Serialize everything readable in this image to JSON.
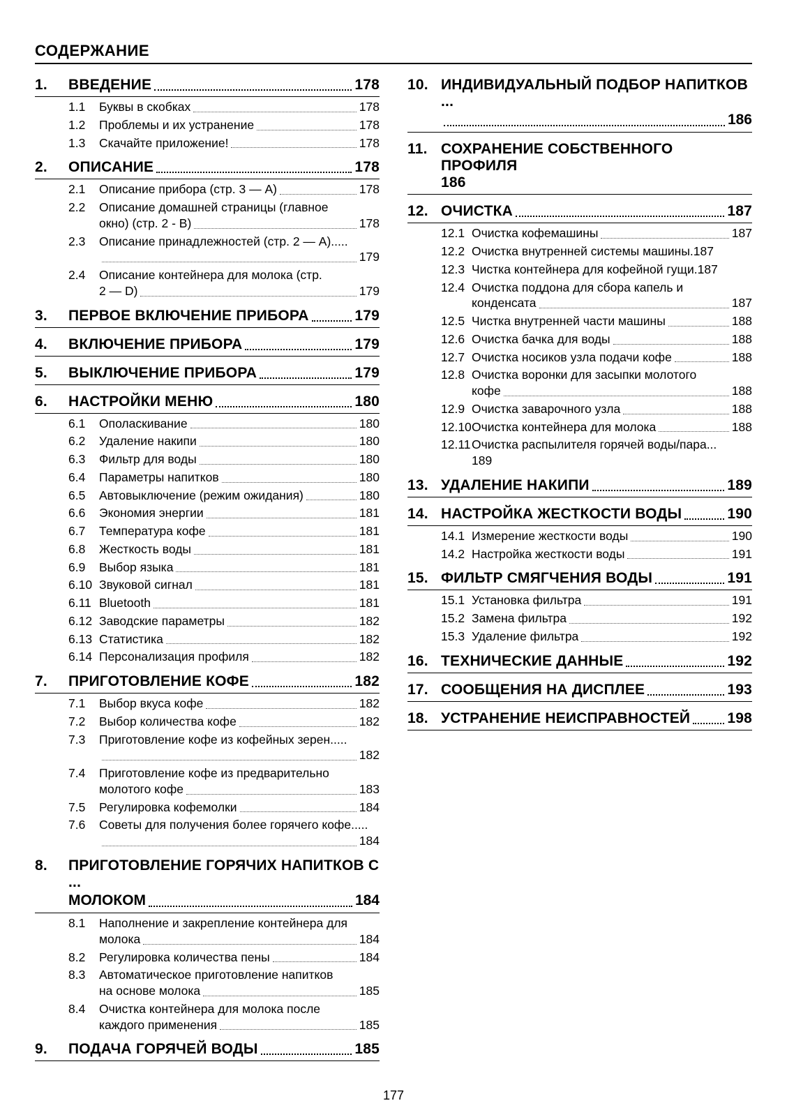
{
  "page_title": "СОДЕРЖАНИЕ",
  "page_number": "177",
  "sections": [
    {
      "num": "1.",
      "title": "ВВЕДЕНИЕ",
      "page": "178",
      "items": [
        {
          "num": "1.1",
          "title": "Буквы в скобках",
          "page": "178"
        },
        {
          "num": "1.2",
          "title": "Проблемы и их устранение",
          "page": "178"
        },
        {
          "num": "1.3",
          "title": "Скачайте приложение!",
          "page": "178"
        }
      ]
    },
    {
      "num": "2.",
      "title": "ОПИСАНИЕ",
      "page": "178",
      "items": [
        {
          "num": "2.1",
          "title": "Описание прибора (стр. 3 — A)",
          "page": "178"
        },
        {
          "num": "2.2",
          "title": "Описание домашней страницы (главное",
          "cont": "окно) (стр. 2 - B)",
          "page": "178"
        },
        {
          "num": "2.3",
          "title": "Описание принадлежностей (стр. 2 — A)",
          "cont": "",
          "page": "179"
        },
        {
          "num": "2.4",
          "title": "Описание контейнера для молока (стр.",
          "cont": "2 — D)",
          "page": "179"
        }
      ]
    },
    {
      "num": "3.",
      "title": "ПЕРВОЕ ВКЛЮЧЕНИЕ ПРИБОРА",
      "page": "179",
      "items": []
    },
    {
      "num": "4.",
      "title": "ВКЛЮЧЕНИЕ ПРИБОРА",
      "page": "179",
      "items": []
    },
    {
      "num": "5.",
      "title": "ВЫКЛЮЧЕНИЕ ПРИБОРА",
      "page": "179",
      "items": []
    },
    {
      "num": "6.",
      "title": "НАСТРОЙКИ МЕНЮ",
      "page": "180",
      "items": [
        {
          "num": "6.1",
          "title": "Ополаскивание",
          "page": "180"
        },
        {
          "num": "6.2",
          "title": "Удаление накипи",
          "page": "180"
        },
        {
          "num": "6.3",
          "title": "Фильтр для воды",
          "page": "180"
        },
        {
          "num": "6.4",
          "title": "Параметры напитков",
          "page": "180"
        },
        {
          "num": "6.5",
          "title": "Автовыключение (режим ожидания)",
          "page": "180"
        },
        {
          "num": "6.6",
          "title": "Экономия энергии",
          "page": "181"
        },
        {
          "num": "6.7",
          "title": "Температура кофе",
          "page": "181"
        },
        {
          "num": "6.8",
          "title": "Жесткость воды",
          "page": "181"
        },
        {
          "num": "6.9",
          "title": "Выбор языка",
          "page": "181"
        },
        {
          "num": "6.10",
          "title": "Звуковой сигнал",
          "page": "181"
        },
        {
          "num": "6.11",
          "title": "Bluetooth",
          "page": "181"
        },
        {
          "num": "6.12",
          "title": "Заводские параметры",
          "page": "182"
        },
        {
          "num": "6.13",
          "title": "Статистика",
          "page": "182"
        },
        {
          "num": "6.14",
          "title": "Персонализация профиля",
          "page": "182"
        }
      ]
    },
    {
      "num": "7.",
      "title": "ПРИГОТОВЛЕНИЕ КОФЕ",
      "page": "182",
      "items": [
        {
          "num": "7.1",
          "title": "Выбор вкуса кофе",
          "page": "182"
        },
        {
          "num": "7.2",
          "title": "Выбор количества кофе",
          "page": "182"
        },
        {
          "num": "7.3",
          "title": "Приготовление кофе из кофейных зерен",
          "cont": "",
          "page": "182"
        },
        {
          "num": "7.4",
          "title": "Приготовление кофе из предварительно",
          "cont": "молотого кофе",
          "page": "183"
        },
        {
          "num": "7.5",
          "title": "Регулировка кофемолки",
          "page": "184"
        },
        {
          "num": "7.6",
          "title": "Советы для получения более горячего кофе",
          "cont": "",
          "page": "184"
        }
      ]
    },
    {
      "num": "8.",
      "title": "ПРИГОТОВЛЕНИЕ ГОРЯЧИХ НАПИТКОВ С",
      "title_cont": "МОЛОКОМ",
      "page": "184",
      "allow_break": true,
      "items": [
        {
          "num": "8.1",
          "title": "Наполнение и закрепление контейнера для",
          "cont": "молока",
          "page": "184"
        },
        {
          "num": "8.2",
          "title": "Регулировка количества пены",
          "page": "184"
        },
        {
          "num": "8.3",
          "title": "Автоматическое приготовление напитков",
          "cont": "на основе молока",
          "page": "185"
        },
        {
          "num": "8.4",
          "title": "Очистка контейнера для молока после",
          "cont": "каждого применения",
          "page": "185"
        }
      ]
    },
    {
      "num": "9.",
      "title": "ПОДАЧА ГОРЯЧЕЙ ВОДЫ",
      "page": "185",
      "items": []
    },
    {
      "num": "10.",
      "title": "ИНДИВИДУАЛЬНЫЙ ПОДБОР НАПИТКОВ",
      "title_cont": "",
      "page": "186",
      "items": []
    },
    {
      "num": "11.",
      "title": "СОХРАНЕНИЕ СОБСТВЕННОГО ПРОФИЛЯ",
      "page": "186",
      "no_leader": true,
      "items": []
    },
    {
      "num": "12.",
      "title": "ОЧИСТКА",
      "page": "187",
      "items": [
        {
          "num": "12.1",
          "title": "Очистка кофемашины",
          "page": "187"
        },
        {
          "num": "12.2",
          "title": "Очистка внутренней системы машины",
          "page": "187",
          "short_leader": true
        },
        {
          "num": "12.3",
          "title": "Чистка контейнера для кофейной гущи",
          "page": "187",
          "short_leader": true
        },
        {
          "num": "12.4",
          "title": "Очистка поддона для сбора капель и",
          "cont": "конденсата",
          "page": "187"
        },
        {
          "num": "12.5",
          "title": "Чистка внутренней части машины",
          "page": "188"
        },
        {
          "num": "12.6",
          "title": "Очистка бачка для воды",
          "page": "188"
        },
        {
          "num": "12.7",
          "title": "Очистка носиков узла подачи кофе",
          "page": "188"
        },
        {
          "num": "12.8",
          "title": "Очистка воронки для засыпки молотого",
          "cont": "кофе",
          "page": "188"
        },
        {
          "num": "12.9",
          "title": "Очистка заварочного узла",
          "page": "188"
        },
        {
          "num": "12.10",
          "title": "Очистка контейнера для молока",
          "page": "188"
        },
        {
          "num": "12.11",
          "title": "Очистка распылителя горячей воды/пара",
          "cont_plain": "189"
        }
      ]
    },
    {
      "num": "13.",
      "title": "УДАЛЕНИЕ НАКИПИ",
      "page": "189",
      "items": []
    },
    {
      "num": "14.",
      "title": "НАСТРОЙКА ЖЕСТКОСТИ ВОДЫ",
      "page": "190",
      "items": [
        {
          "num": "14.1",
          "title": "Измерение жесткости воды",
          "page": "190"
        },
        {
          "num": "14.2",
          "title": "Настройка жесткости воды",
          "page": "191"
        }
      ]
    },
    {
      "num": "15.",
      "title": "ФИЛЬТР СМЯГЧЕНИЯ ВОДЫ",
      "page": "191",
      "items": [
        {
          "num": "15.1",
          "title": "Установка фильтра",
          "page": "191"
        },
        {
          "num": "15.2",
          "title": "Замена фильтра",
          "page": "192"
        },
        {
          "num": "15.3",
          "title": "Удаление фильтра",
          "page": "192"
        }
      ]
    },
    {
      "num": "16.",
      "title": "ТЕХНИЧЕСКИЕ ДАННЫЕ",
      "page": "192",
      "items": []
    },
    {
      "num": "17.",
      "title": "СООБЩЕНИЯ НА ДИСПЛЕЕ",
      "page": "193",
      "items": []
    },
    {
      "num": "18.",
      "title": "УСТРАНЕНИЕ НЕИСПРАВНОСТЕЙ",
      "page": "198",
      "items": []
    }
  ]
}
